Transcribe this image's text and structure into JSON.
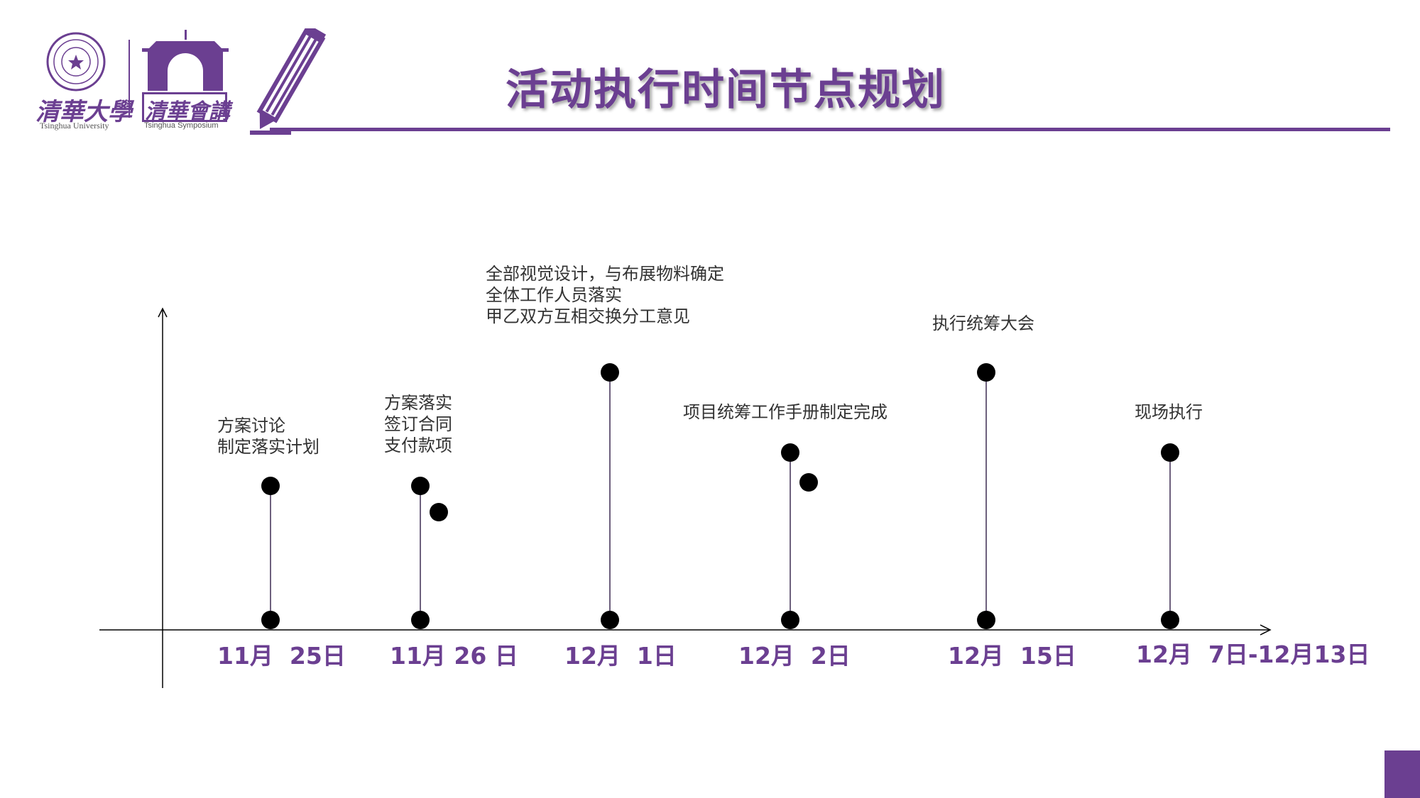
{
  "header": {
    "logo_university_zh": "清華大學",
    "logo_university_en": "Tsinghua University",
    "logo_symposium_zh": "清華會講",
    "logo_symposium_en": "Tsinghua Symposium",
    "title": "活动执行时间节点规划"
  },
  "colors": {
    "accent": "#6b3f91",
    "ink": "#000000",
    "text": "#333333"
  },
  "timeline": {
    "events": [
      {
        "date": "11月  25日",
        "notes": "方案讨论\n制定落实计划"
      },
      {
        "date": "11月 26 日",
        "notes": "方案落实\n签订合同\n支付款项"
      },
      {
        "date": "12月  1日",
        "notes": "全部视觉设计，与布展物料确定\n全体工作人员落实\n甲乙双方互相交换分工意见"
      },
      {
        "date": "12月  2日",
        "notes": "项目统筹工作手册制定完成"
      },
      {
        "date": "12月  15日",
        "notes": "执行统筹大会"
      },
      {
        "date": "12月  7日-12月13日",
        "notes": "现场执行"
      }
    ]
  }
}
